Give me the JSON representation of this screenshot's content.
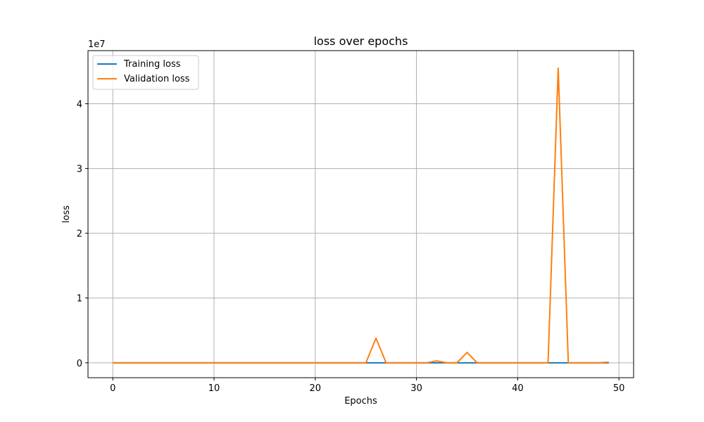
{
  "chart_data": {
    "type": "line",
    "title": "loss over epochs",
    "xlabel": "Epochs",
    "ylabel": "loss",
    "y_scale_label": "1e7",
    "x": [
      0,
      1,
      2,
      3,
      4,
      5,
      6,
      7,
      8,
      9,
      10,
      11,
      12,
      13,
      14,
      15,
      16,
      17,
      18,
      19,
      20,
      21,
      22,
      23,
      24,
      25,
      26,
      27,
      28,
      29,
      30,
      31,
      32,
      33,
      34,
      35,
      36,
      37,
      38,
      39,
      40,
      41,
      42,
      43,
      44,
      45,
      46,
      47,
      48,
      49
    ],
    "xlim": [
      -2.45,
      51.45
    ],
    "ylim": [
      -0.23,
      4.82
    ],
    "xticks": [
      0,
      10,
      20,
      30,
      40,
      50
    ],
    "yticks": [
      0,
      1,
      2,
      3,
      4
    ],
    "grid": true,
    "legend_position": "upper-left",
    "series": [
      {
        "name": "Training loss",
        "color": "#1f77b4",
        "values": [
          0.0,
          0.0,
          0.0,
          0.0,
          0.0,
          0.0,
          0.0,
          0.0,
          0.0,
          0.0,
          0.0,
          0.0,
          0.0,
          0.0,
          0.0,
          0.0,
          0.0,
          0.0,
          0.0,
          0.0,
          0.0,
          0.0,
          0.0,
          0.0,
          0.0,
          0.0,
          0.0,
          0.0,
          0.0,
          0.0,
          0.0,
          0.0,
          0.0,
          0.0,
          0.0,
          0.0,
          0.0,
          0.0,
          0.0,
          0.0,
          0.0,
          0.0,
          0.0,
          0.0,
          0.0,
          0.0,
          0.0,
          0.0,
          0.0,
          0.0
        ]
      },
      {
        "name": "Validation loss",
        "color": "#ff7f0e",
        "values": [
          0.0,
          0.0,
          0.0,
          0.0,
          0.0,
          0.0,
          0.0,
          0.0,
          0.0,
          0.0,
          0.0,
          0.0,
          0.0,
          0.0,
          0.0,
          0.0,
          0.0,
          0.0,
          0.0,
          0.0,
          0.0,
          0.0,
          0.0,
          0.0,
          0.0,
          0.0,
          0.38,
          0.0,
          0.0,
          0.0,
          0.0,
          0.0,
          0.03,
          0.0,
          0.0,
          0.16,
          0.0,
          0.0,
          0.0,
          0.0,
          0.0,
          0.0,
          0.0,
          0.0,
          4.55,
          0.0,
          0.0,
          0.0,
          0.0,
          0.01
        ]
      }
    ]
  }
}
